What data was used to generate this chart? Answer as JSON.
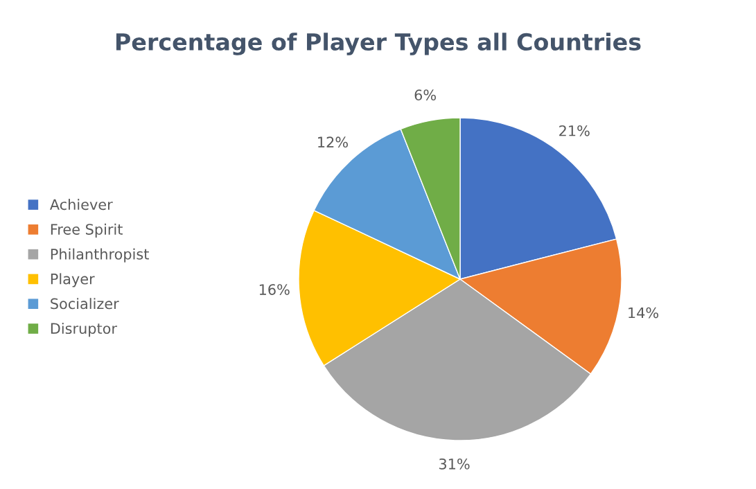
{
  "chart_data": {
    "type": "pie",
    "title": "Percentage of Player Types all Countries",
    "categories": [
      "Achiever",
      "Free Spirit",
      "Philanthropist",
      "Player",
      "Socializer",
      "Disruptor"
    ],
    "values": [
      21,
      14,
      31,
      16,
      12,
      6
    ],
    "value_labels": [
      "21%",
      "14%",
      "31%",
      "16%",
      "12%",
      "6%"
    ],
    "colors": [
      "#4472c4",
      "#ed7d31",
      "#a5a5a5",
      "#ffc000",
      "#5b9bd5",
      "#70ad47"
    ],
    "legend": "left"
  }
}
